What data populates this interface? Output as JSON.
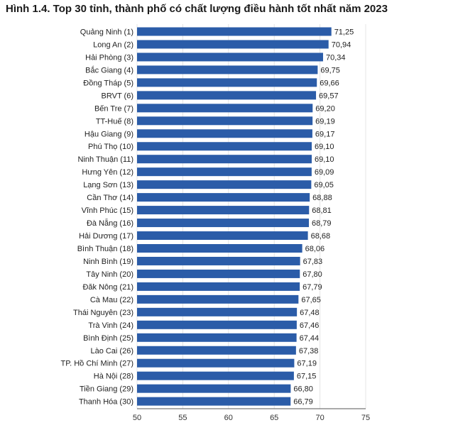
{
  "title": "Hình 1.4. Top 30 tỉnh, thành phố có chất lượng điều hành tốt nhất năm 2023",
  "colors": {
    "bar": "#2b5ca8",
    "grid": "#e4e4e4",
    "axis": "#555555"
  },
  "chart_data": {
    "type": "bar",
    "orientation": "horizontal",
    "title": "Hình 1.4. Top 30 tỉnh, thành phố có chất lượng điều hành tốt nhất năm 2023",
    "xlabel": "",
    "ylabel": "",
    "xlim": [
      50,
      75
    ],
    "xticks": [
      50,
      55,
      60,
      65,
      70,
      75
    ],
    "grid": true,
    "categories": [
      "Quảng Ninh (1)",
      "Long An (2)",
      "Hải Phòng (3)",
      "Bắc Giang (4)",
      "Đồng Tháp (5)",
      "BRVT (6)",
      "Bến Tre (7)",
      "TT-Huế (8)",
      "Hậu Giang (9)",
      "Phú Thọ (10)",
      "Ninh Thuận (11)",
      "Hưng Yên (12)",
      "Lạng Sơn (13)",
      "Cần Thơ (14)",
      "Vĩnh Phúc (15)",
      "Đà Nẵng (16)",
      "Hải Dương (17)",
      "Bình Thuận (18)",
      "Ninh Bình (19)",
      "Tây Ninh (20)",
      "Đăk Nông (21)",
      "Cà Mau (22)",
      "Thái Nguyên (23)",
      "Trà Vinh (24)",
      "Bình Định (25)",
      "Lào Cai (26)",
      "TP. Hồ Chí Minh (27)",
      "Hà Nội (28)",
      "Tiền Giang (29)",
      "Thanh Hóa (30)"
    ],
    "values": [
      71.25,
      70.94,
      70.34,
      69.75,
      69.66,
      69.57,
      69.2,
      69.19,
      69.17,
      69.1,
      69.1,
      69.09,
      69.05,
      68.88,
      68.81,
      68.79,
      68.68,
      68.06,
      67.83,
      67.8,
      67.79,
      67.65,
      67.48,
      67.46,
      67.44,
      67.38,
      67.19,
      67.15,
      66.8,
      66.79
    ],
    "value_labels": [
      "71,25",
      "70,94",
      "70,34",
      "69,75",
      "69,66",
      "69,57",
      "69,20",
      "69,19",
      "69,17",
      "69,10",
      "69,10",
      "69,09",
      "69,05",
      "68,88",
      "68,81",
      "68,79",
      "68,68",
      "68,06",
      "67,83",
      "67,80",
      "67,79",
      "67,65",
      "67,48",
      "67,46",
      "67,44",
      "67,38",
      "67,19",
      "67,15",
      "66,80",
      "66,79"
    ]
  }
}
